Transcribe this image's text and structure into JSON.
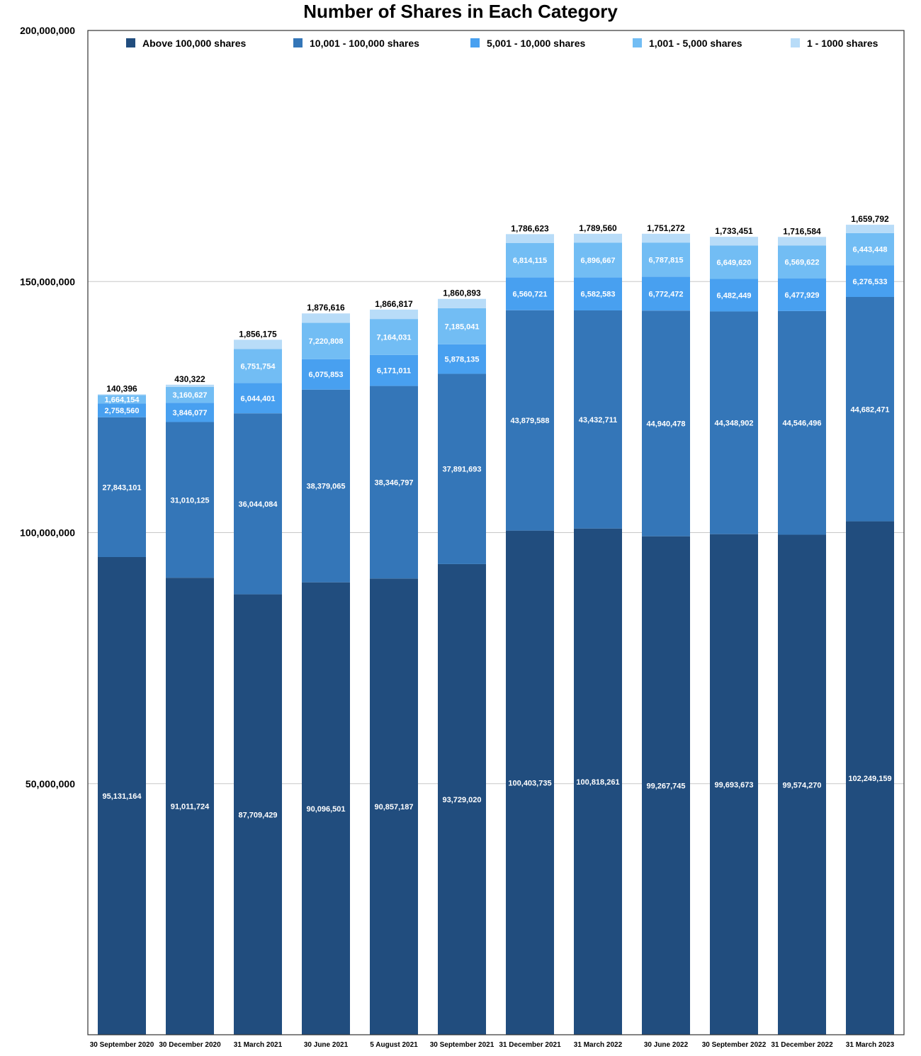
{
  "chart_data": {
    "type": "bar",
    "stacked": true,
    "title": "Number of Shares in Each Category",
    "xlabel": "",
    "ylabel": "",
    "ylim": [
      0,
      200000000
    ],
    "yticks": [
      50000000,
      100000000,
      150000000,
      200000000
    ],
    "ytick_labels": [
      "50,000,000",
      "100,000,000",
      "150,000,000",
      "200,000,000"
    ],
    "grid": true,
    "legend_position": "top",
    "categories": [
      "30 September 2020",
      "30 December 2020",
      "31 March 2021",
      "30 June 2021",
      "5 August 2021",
      "30 September 2021",
      "31 December 2021",
      "31 March 2022",
      "30 June 2022",
      "30 September 2022",
      "31 December 2022",
      "31 March 2023"
    ],
    "series": [
      {
        "name": "Above 100,000 shares",
        "color": "#214d7e",
        "values": [
          95131164,
          91011724,
          87709429,
          90096501,
          90857187,
          93729020,
          100403735,
          100818261,
          99267745,
          99693673,
          99574270,
          102249159
        ]
      },
      {
        "name": "10,001 - 100,000 shares",
        "color": "#3476b8",
        "values": [
          27843101,
          31010125,
          36044084,
          38379065,
          38346797,
          37891693,
          43879588,
          43432711,
          44940478,
          44348902,
          44546496,
          44682471
        ]
      },
      {
        "name": "5,001 - 10,000 shares",
        "color": "#48a0f0",
        "values": [
          2758560,
          3846077,
          6044401,
          6075853,
          6171011,
          5878135,
          6560721,
          6582583,
          6772472,
          6482449,
          6477929,
          6276533
        ]
      },
      {
        "name": "1,001 - 5,000 shares",
        "color": "#72bdf4",
        "values": [
          1664154,
          3160627,
          6751754,
          7220808,
          7164031,
          7185041,
          6814115,
          6896667,
          6787815,
          6649620,
          6569622,
          6443448
        ]
      },
      {
        "name": "1 - 1000 shares",
        "color": "#b8dcf8",
        "values": [
          140396,
          430322,
          1856175,
          1876616,
          1866817,
          1860893,
          1786623,
          1789560,
          1751272,
          1733451,
          1716584,
          1659792
        ]
      }
    ]
  }
}
